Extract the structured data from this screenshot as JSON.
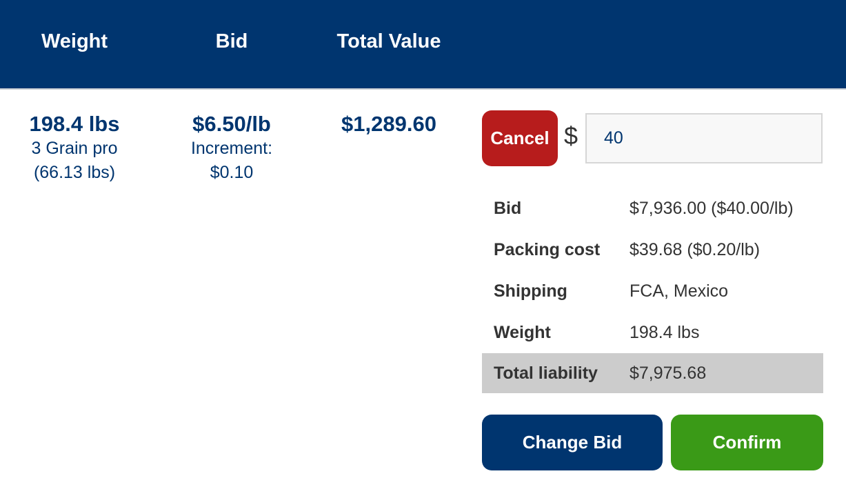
{
  "header": {
    "weight": "Weight",
    "bid": "Bid",
    "total_value": "Total Value"
  },
  "lot": {
    "weight": "198.4 lbs",
    "weight_detail_1": "3 Grain pro",
    "weight_detail_2": "(66.13 lbs)",
    "bid": "$6.50/lb",
    "increment_label": "Increment:",
    "increment_value": "$0.10",
    "total_value": "$1,289.60"
  },
  "bid_form": {
    "cancel_label": "Cancel",
    "currency_symbol": "$",
    "input_value": "40"
  },
  "summary": [
    {
      "label": "Bid",
      "value": "$7,936.00 ($40.00/lb)"
    },
    {
      "label": "Packing cost",
      "value": "$39.68 ($0.20/lb)"
    },
    {
      "label": "Shipping",
      "value": "FCA, Mexico"
    },
    {
      "label": "Weight",
      "value": "198.4 lbs"
    },
    {
      "label": "Total liability",
      "value": "$7,975.68"
    }
  ],
  "actions": {
    "change_bid_label": "Change Bid",
    "confirm_label": "Confirm"
  },
  "colors": {
    "primary": "#00356f",
    "cancel": "#b71c1c",
    "confirm": "#3a9a17",
    "total_row": "#cccccc"
  }
}
